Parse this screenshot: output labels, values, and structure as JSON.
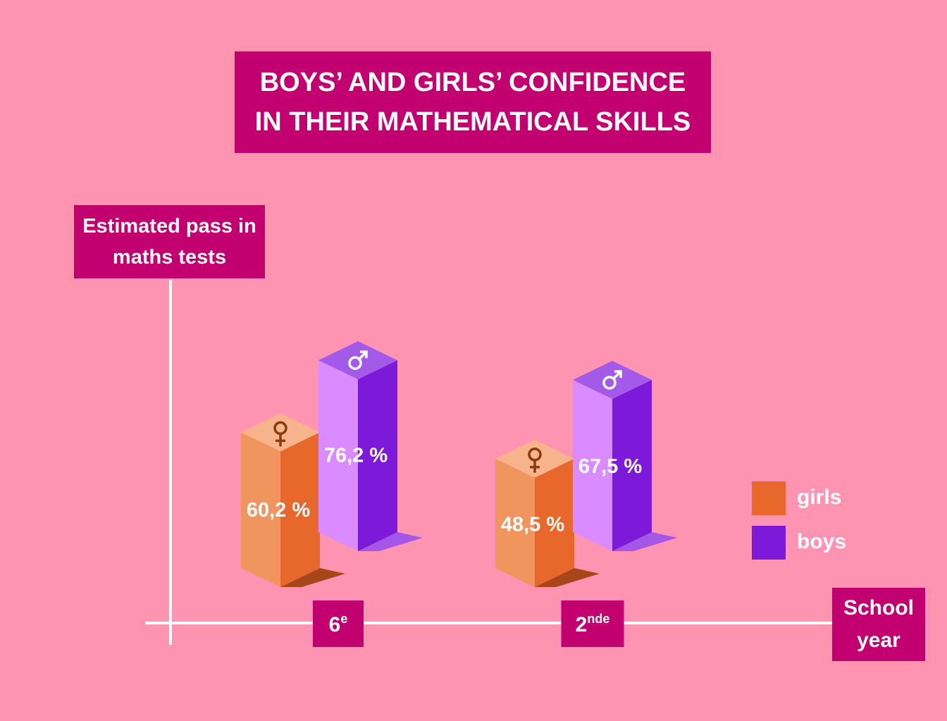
{
  "chart_data": {
    "type": "bar3d",
    "title": "BOYS’ AND GIRLS’ CONFIDENCE IN THEIR MATHEMATICAL SKILLS",
    "y_label": "Estimated pass in maths tests",
    "x_label": "School year",
    "categories": [
      "6e",
      "2nde"
    ],
    "series": [
      {
        "name": "girls",
        "color": "#e8672a",
        "values": [
          60.2,
          48.5
        ],
        "value_labels": [
          "60,2 %",
          "48,5 %"
        ]
      },
      {
        "name": "boys",
        "color": "#7d1ad9",
        "values": [
          76.2,
          67.5
        ],
        "value_labels": [
          "76,2 %",
          "67,5 %"
        ]
      }
    ]
  }
}
